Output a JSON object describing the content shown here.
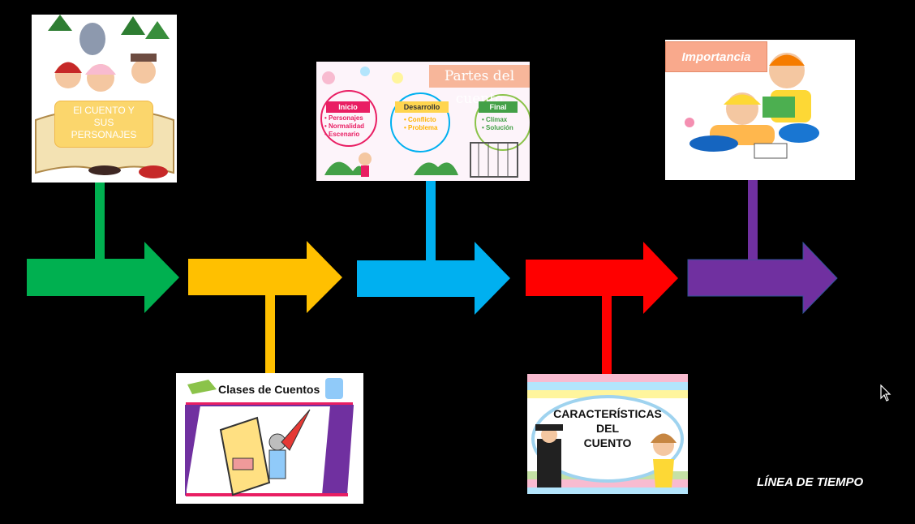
{
  "colors": {
    "green": "#00b050",
    "yellow": "#ffc000",
    "blue": "#00b0f0",
    "red": "#ff0000",
    "purple": "#7030a0"
  },
  "cards": {
    "personajes": {
      "label": "El CUENTO Y\nSUS\nPERSONAJES"
    },
    "partes": {
      "title": "Partes del cuento",
      "inicio": {
        "tag": "Inicio",
        "items": "• Personajes\n• Normalidad\n• Escenario"
      },
      "desarrollo": {
        "tag": "Desarrollo",
        "items": "• Conflicto\n• Problema"
      },
      "final": {
        "tag": "Final",
        "items": "• Clímax\n• Solución"
      }
    },
    "clases": {
      "title": "Clases de Cuentos"
    },
    "importancia": {
      "title": "Importancia"
    },
    "caracteristicas": {
      "title": "CARACTERÍSTICAS\nDEL\nCUENTO"
    }
  },
  "footer": "LÍNEA DE TIEMPO"
}
